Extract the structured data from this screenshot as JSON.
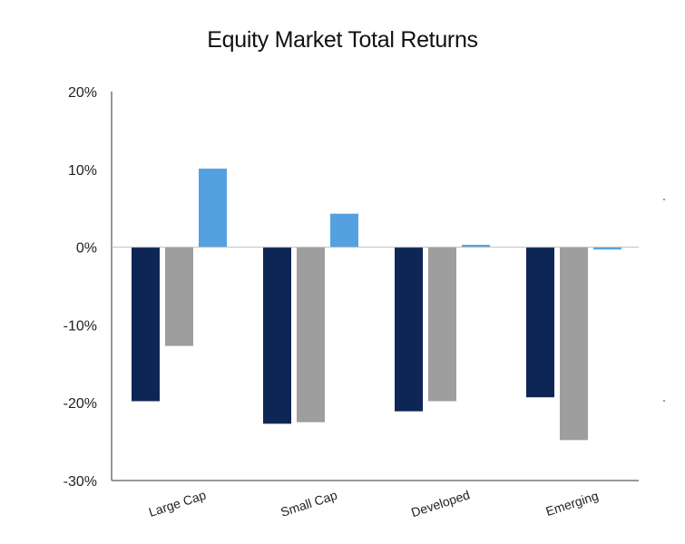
{
  "chart_data": {
    "type": "bar",
    "title": "Equity Market Total Returns",
    "xlabel": "",
    "ylabel": "",
    "categories": [
      "Large Cap",
      "Small Cap",
      "Developed",
      "Emerging"
    ],
    "series": [
      {
        "values": [
          -19.8,
          -22.7,
          -21.1,
          -19.3
        ],
        "color": "#0e2656"
      },
      {
        "values": [
          -12.7,
          -22.5,
          -19.8,
          -24.8
        ],
        "color": "#9e9e9e"
      },
      {
        "values": [
          10.1,
          4.3,
          0.3,
          -0.3
        ],
        "color": "#55a1e0"
      }
    ],
    "ylim": [
      -30,
      20
    ],
    "yticks": [
      20,
      10,
      0,
      -10,
      -20,
      -30
    ],
    "ytick_labels": [
      "20%",
      "10%",
      "0%",
      "-10%",
      "-20%",
      "-30%"
    ],
    "grid": false,
    "legend": "none"
  }
}
